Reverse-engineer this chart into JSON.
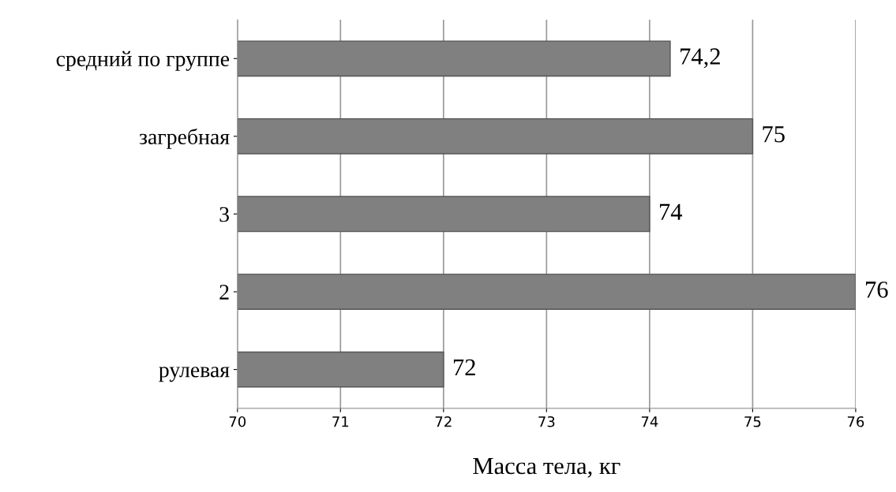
{
  "chart_data": {
    "type": "bar",
    "orientation": "horizontal",
    "xlabel": "Масса тела, кг",
    "categories": [
      "средний по группе",
      "загребная",
      "3",
      "2",
      "рулевая"
    ],
    "values": [
      74.2,
      75,
      74,
      76,
      72
    ],
    "value_labels": [
      "74,2",
      "75",
      "74",
      "76",
      "72"
    ],
    "color": "#808080",
    "xlim": [
      70,
      76
    ],
    "xticks": [
      70,
      71,
      72,
      73,
      74,
      75,
      76
    ],
    "grid": "x"
  }
}
